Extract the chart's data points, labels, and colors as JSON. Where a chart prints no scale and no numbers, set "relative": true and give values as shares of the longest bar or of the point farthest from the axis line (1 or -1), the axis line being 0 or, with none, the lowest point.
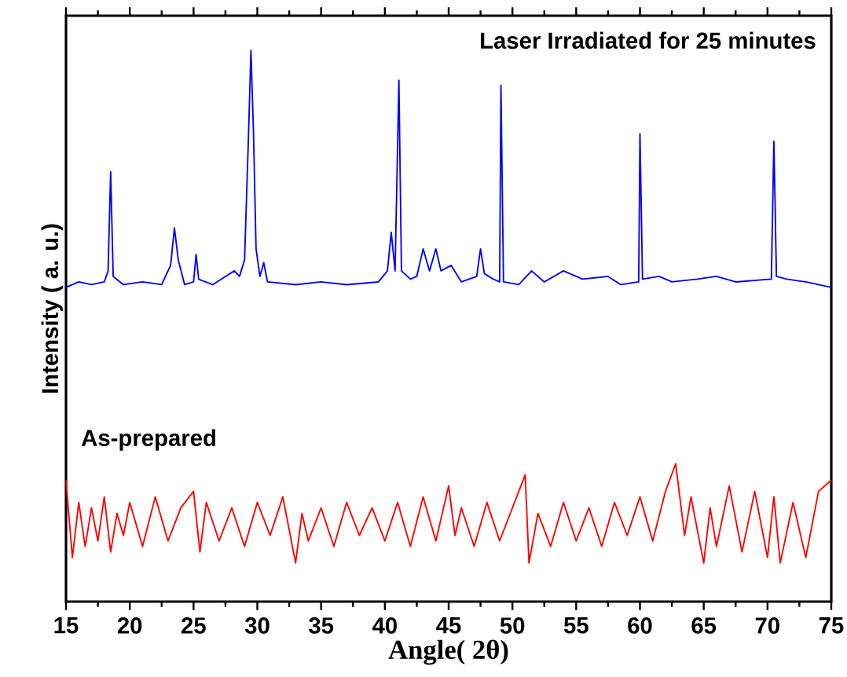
{
  "chart_data": {
    "type": "line",
    "relative": true,
    "xlabel": "Angle( 2θ)",
    "ylabel": "Intensity ( a. u.)",
    "xlim": [
      15,
      75
    ],
    "xticks": [
      15,
      20,
      25,
      30,
      35,
      40,
      45,
      50,
      55,
      60,
      65,
      70,
      75
    ],
    "tick_labels": "x",
    "series": [
      {
        "name": "Laser Irradiated for 25 minutes",
        "color": "#0000ff",
        "x": [
          15,
          16,
          17,
          18,
          18.3,
          18.5,
          18.7,
          19.5,
          21,
          22.5,
          23.2,
          23.5,
          23.8,
          24.3,
          25.0,
          25.2,
          25.4,
          26.5,
          27.5,
          28.2,
          28.6,
          29.0,
          29.3,
          29.5,
          29.7,
          29.9,
          30.2,
          30.5,
          30.8,
          33,
          35,
          37,
          39.5,
          40.2,
          40.5,
          40.8,
          41.1,
          41.3,
          42,
          42.5,
          43,
          43.5,
          44,
          44.4,
          45.2,
          46,
          47.2,
          47.5,
          47.8,
          48.5,
          49.0,
          49.1,
          49.3,
          50.5,
          51.5,
          52.5,
          54,
          55.5,
          57.5,
          58.5,
          59.9,
          60.0,
          60.2,
          61.5,
          62.5,
          64.5,
          66,
          67.5,
          70.3,
          70.5,
          70.7,
          71.5,
          73,
          75
        ],
        "values": [
          0.57,
          0.58,
          0.575,
          0.58,
          0.6,
          0.78,
          0.59,
          0.575,
          0.58,
          0.575,
          0.61,
          0.678,
          0.62,
          0.575,
          0.58,
          0.63,
          0.585,
          0.575,
          0.59,
          0.6,
          0.59,
          0.62,
          0.84,
          1.0,
          0.85,
          0.64,
          0.59,
          0.615,
          0.58,
          0.575,
          0.58,
          0.575,
          0.58,
          0.6,
          0.67,
          0.6,
          0.946,
          0.6,
          0.585,
          0.59,
          0.64,
          0.6,
          0.64,
          0.6,
          0.61,
          0.58,
          0.59,
          0.64,
          0.595,
          0.585,
          0.58,
          0.937,
          0.58,
          0.575,
          0.6,
          0.58,
          0.6,
          0.585,
          0.59,
          0.575,
          0.58,
          0.849,
          0.585,
          0.59,
          0.58,
          0.585,
          0.59,
          0.58,
          0.585,
          0.835,
          0.59,
          0.585,
          0.58,
          0.57
        ]
      },
      {
        "name": "As-prepared",
        "color": "#ff0000",
        "x": [
          15,
          15.5,
          16,
          16.5,
          17,
          17.5,
          18,
          18.5,
          19,
          19.5,
          20,
          21,
          22,
          23,
          24,
          25,
          25.5,
          26,
          27,
          28,
          29,
          30,
          31,
          32,
          33,
          33.5,
          34,
          35,
          36,
          37,
          38,
          39,
          40,
          41,
          42,
          43,
          44,
          45,
          45.5,
          46,
          47,
          48,
          49,
          50,
          51,
          51.3,
          52,
          53,
          54,
          55,
          56,
          57,
          58,
          59,
          60,
          61,
          62,
          62.8,
          63.5,
          64,
          65,
          65.5,
          66,
          67,
          68,
          69,
          70,
          70.5,
          71,
          72,
          73,
          74,
          75
        ],
        "values": [
          0.22,
          0.08,
          0.18,
          0.1,
          0.17,
          0.11,
          0.19,
          0.09,
          0.16,
          0.12,
          0.18,
          0.1,
          0.19,
          0.11,
          0.17,
          0.2,
          0.09,
          0.18,
          0.11,
          0.17,
          0.1,
          0.18,
          0.12,
          0.19,
          0.07,
          0.16,
          0.11,
          0.17,
          0.1,
          0.18,
          0.12,
          0.17,
          0.11,
          0.18,
          0.1,
          0.19,
          0.11,
          0.21,
          0.12,
          0.17,
          0.1,
          0.18,
          0.11,
          0.17,
          0.23,
          0.07,
          0.16,
          0.1,
          0.18,
          0.11,
          0.17,
          0.1,
          0.18,
          0.12,
          0.19,
          0.11,
          0.2,
          0.25,
          0.12,
          0.19,
          0.07,
          0.17,
          0.1,
          0.21,
          0.09,
          0.2,
          0.08,
          0.19,
          0.07,
          0.18,
          0.08,
          0.2,
          0.22
        ]
      }
    ]
  }
}
